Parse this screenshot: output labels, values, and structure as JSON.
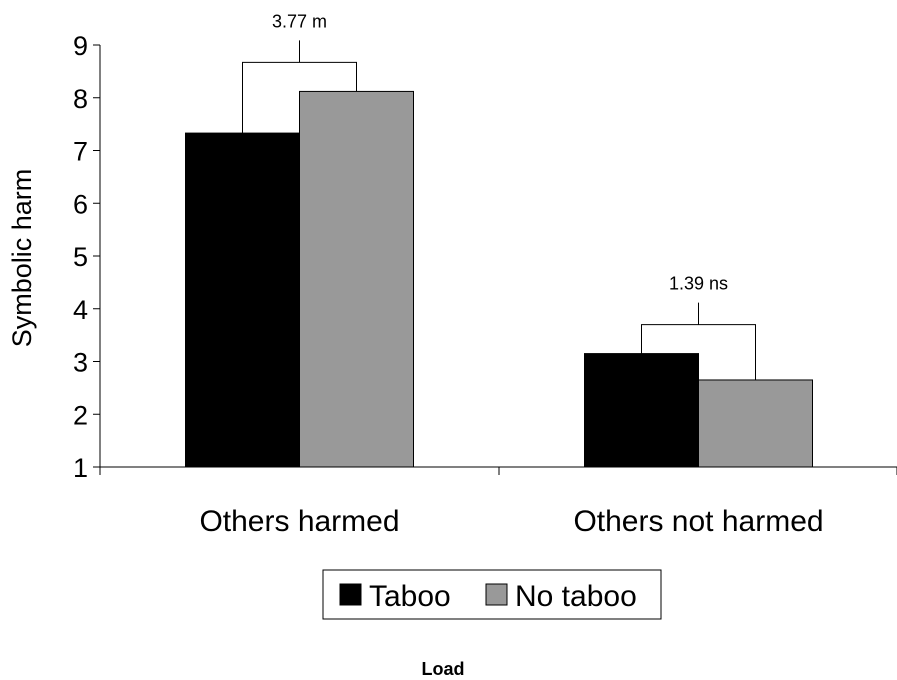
{
  "chart_data": {
    "type": "bar",
    "ylabel": "Symbolic harm",
    "xlabel": "Load",
    "categories": [
      "Others harmed",
      "Others not harmed"
    ],
    "series": [
      {
        "name": "Taboo",
        "values": [
          7.33,
          3.15
        ],
        "color": "#000000"
      },
      {
        "name": "No taboo",
        "values": [
          8.12,
          2.65
        ],
        "color": "#999999"
      }
    ],
    "ylim": [
      1,
      9
    ],
    "yticks": [
      1,
      2,
      3,
      4,
      5,
      6,
      7,
      8,
      9
    ],
    "annotations": [
      {
        "category_index": 0,
        "text": "3.77 m"
      },
      {
        "category_index": 1,
        "text": "1.39 ns"
      }
    ],
    "legend_position": "bottom",
    "grid": false
  }
}
